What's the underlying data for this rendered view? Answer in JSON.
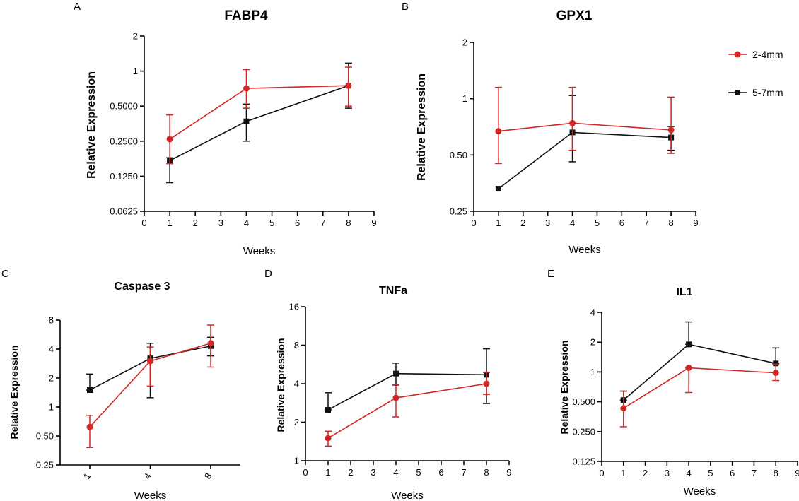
{
  "legend": {
    "entries": [
      {
        "name": "2-4mm",
        "color": "#d32626",
        "marker": "circle"
      },
      {
        "name": "5-7mm",
        "color": "#111111",
        "marker": "square"
      }
    ]
  },
  "chart_data": [
    {
      "panel": "A",
      "type": "line",
      "title": "FABP4",
      "xlabel": "Weeks",
      "ylabel": "Relative  Expression",
      "xlim": [
        0,
        9
      ],
      "xticks": [
        "0",
        "1",
        "2",
        "3",
        "4",
        "5",
        "6",
        "7",
        "8",
        "9"
      ],
      "yscale": "log2",
      "ylim": [
        0.0625,
        2
      ],
      "yticks": [
        {
          "v": 0.0625,
          "label": "0.0625"
        },
        {
          "v": 0.125,
          "label": "0.1250"
        },
        {
          "v": 0.25,
          "label": "0.2500"
        },
        {
          "v": 0.5,
          "label": "0.5000"
        },
        {
          "v": 1,
          "label": "1"
        },
        {
          "v": 2,
          "label": "2"
        }
      ],
      "x": [
        1,
        4,
        8
      ],
      "series": [
        {
          "name": "2-4mm",
          "values": [
            0.26,
            0.71,
            0.75
          ],
          "err_low": [
            0.16,
            0.48,
            0.5
          ],
          "err_high": [
            0.42,
            1.03,
            1.08
          ]
        },
        {
          "name": "5-7mm",
          "values": [
            0.17,
            0.37,
            0.75
          ],
          "err_low": [
            0.11,
            0.25,
            0.48
          ],
          "err_high": [
            0.18,
            0.52,
            1.17
          ]
        }
      ]
    },
    {
      "panel": "B",
      "type": "line",
      "title": "GPX1",
      "xlabel": "Weeks",
      "ylabel": "Relative  Expression",
      "xlim": [
        0,
        9
      ],
      "xticks": [
        "0",
        "1",
        "2",
        "3",
        "4",
        "5",
        "6",
        "7",
        "8",
        "9"
      ],
      "yscale": "log2",
      "ylim": [
        0.25,
        2
      ],
      "yticks": [
        {
          "v": 0.25,
          "label": "0.25"
        },
        {
          "v": 0.5,
          "label": "0.50"
        },
        {
          "v": 1,
          "label": "1"
        },
        {
          "v": 2,
          "label": "2"
        }
      ],
      "x": [
        1,
        4,
        8
      ],
      "series": [
        {
          "name": "2-4mm",
          "values": [
            0.67,
            0.74,
            0.68
          ],
          "err_low": [
            0.45,
            0.53,
            0.51
          ],
          "err_high": [
            1.15,
            1.15,
            1.02
          ]
        },
        {
          "name": "5-7mm",
          "values": [
            0.33,
            0.66,
            0.62
          ],
          "err_low": [
            0.33,
            0.46,
            0.53
          ],
          "err_high": [
            0.33,
            1.04,
            0.71
          ]
        }
      ]
    },
    {
      "panel": "C",
      "type": "line",
      "title": "Caspase 3",
      "xlabel": "Weeks",
      "ylabel": "Relative Expression",
      "xscale": "categorical",
      "xlim": [
        1,
        8
      ],
      "xticks": [
        "1",
        "4",
        "8"
      ],
      "yscale": "log2",
      "ylim": [
        0.25,
        8
      ],
      "yticks": [
        {
          "v": 0.25,
          "label": "0.25"
        },
        {
          "v": 0.5,
          "label": "0.50"
        },
        {
          "v": 1,
          "label": "1"
        },
        {
          "v": 2,
          "label": "2"
        },
        {
          "v": 4,
          "label": "4"
        },
        {
          "v": 8,
          "label": "8"
        }
      ],
      "x": [
        1,
        4,
        8
      ],
      "series": [
        {
          "name": "2-4mm",
          "values": [
            0.62,
            3.0,
            4.6
          ],
          "err_low": [
            0.38,
            1.65,
            2.6
          ],
          "err_high": [
            0.82,
            4.2,
            7.1
          ]
        },
        {
          "name": "5-7mm",
          "values": [
            1.5,
            3.2,
            4.3
          ],
          "err_low": [
            1.5,
            1.25,
            3.4
          ],
          "err_high": [
            2.2,
            4.6,
            5.3
          ]
        }
      ]
    },
    {
      "panel": "D",
      "type": "line",
      "title": "TNFa",
      "xlabel": "Weeks",
      "ylabel": "Relative Expression",
      "xlim": [
        0,
        9
      ],
      "xticks": [
        "0",
        "1",
        "2",
        "3",
        "4",
        "5",
        "6",
        "7",
        "8",
        "9"
      ],
      "yscale": "log2",
      "ylim": [
        1,
        16
      ],
      "yticks": [
        {
          "v": 1,
          "label": "1"
        },
        {
          "v": 2,
          "label": "2"
        },
        {
          "v": 4,
          "label": "4"
        },
        {
          "v": 8,
          "label": "8"
        },
        {
          "v": 16,
          "label": "16"
        }
      ],
      "x": [
        1,
        4,
        8
      ],
      "series": [
        {
          "name": "2-4mm",
          "values": [
            1.5,
            3.1,
            4.0
          ],
          "err_low": [
            1.3,
            2.2,
            3.3
          ],
          "err_high": [
            1.7,
            3.9,
            4.9
          ]
        },
        {
          "name": "5-7mm",
          "values": [
            2.5,
            4.8,
            4.7
          ],
          "err_low": [
            2.5,
            3.9,
            2.8
          ],
          "err_high": [
            3.4,
            5.8,
            7.5
          ]
        }
      ]
    },
    {
      "panel": "E",
      "type": "line",
      "title": "IL1",
      "xlabel": "Weeks",
      "ylabel": "Relative Expression",
      "xlim": [
        0,
        9
      ],
      "xticks": [
        "0",
        "1",
        "2",
        "3",
        "4",
        "5",
        "6",
        "7",
        "8",
        "9"
      ],
      "yscale": "log2",
      "ylim": [
        0.125,
        4
      ],
      "yticks": [
        {
          "v": 0.125,
          "label": "0.125"
        },
        {
          "v": 0.25,
          "label": "0.250"
        },
        {
          "v": 0.5,
          "label": "0.500"
        },
        {
          "v": 1,
          "label": "1"
        },
        {
          "v": 2,
          "label": "2"
        },
        {
          "v": 4,
          "label": "4"
        }
      ],
      "x": [
        1,
        4,
        8
      ],
      "series": [
        {
          "name": "2-4mm",
          "values": [
            0.43,
            1.1,
            0.98
          ],
          "err_low": [
            0.28,
            0.62,
            0.82
          ],
          "err_high": [
            0.64,
            1.1,
            1.2
          ]
        },
        {
          "name": "5-7mm",
          "values": [
            0.52,
            1.9,
            1.22
          ],
          "err_low": [
            0.52,
            1.9,
            1.22
          ],
          "err_high": [
            0.64,
            3.2,
            1.75
          ]
        }
      ]
    }
  ]
}
